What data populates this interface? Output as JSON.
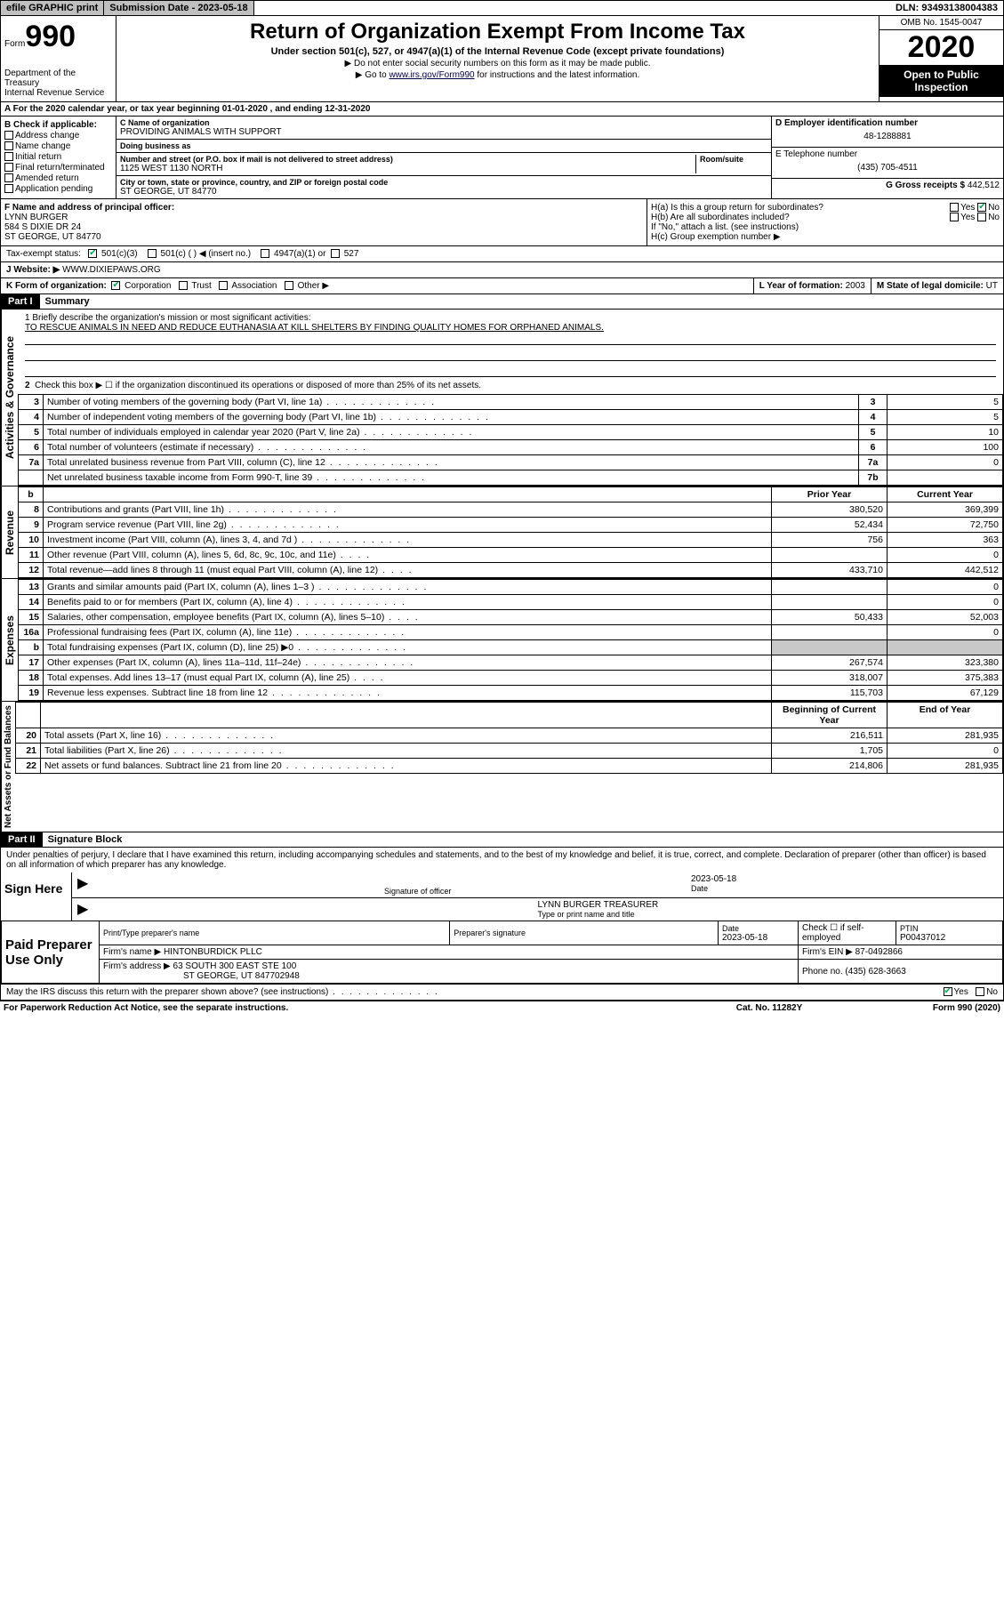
{
  "topbar": {
    "efile": "efile GRAPHIC print",
    "submission_label": "Submission Date - ",
    "submission_date": "2023-05-18",
    "dln_label": "DLN: ",
    "dln": "93493138004383"
  },
  "header": {
    "form_word": "Form",
    "form_num": "990",
    "dept": "Department of the Treasury",
    "irs": "Internal Revenue Service",
    "title": "Return of Organization Exempt From Income Tax",
    "subtitle": "Under section 501(c), 527, or 4947(a)(1) of the Internal Revenue Code (except private foundations)",
    "arrow1": "▶ Do not enter social security numbers on this form as it may be made public.",
    "arrow2_pre": "▶ Go to ",
    "arrow2_link": "www.irs.gov/Form990",
    "arrow2_post": " for instructions and the latest information.",
    "omb": "OMB No. 1545-0047",
    "year": "2020",
    "public": "Open to Public Inspection"
  },
  "line_a": "A For the 2020 calendar year, or tax year beginning 01-01-2020    , and ending 12-31-2020",
  "col_b": {
    "label": "B Check if applicable:",
    "items": [
      "Address change",
      "Name change",
      "Initial return",
      "Final return/terminated",
      "Amended return",
      "Application pending"
    ]
  },
  "col_c": {
    "name_label": "C Name of organization",
    "name": "PROVIDING ANIMALS WITH SUPPORT",
    "dba_label": "Doing business as",
    "dba": "",
    "street_label": "Number and street (or P.O. box if mail is not delivered to street address)",
    "room_label": "Room/suite",
    "street": "1125 WEST 1130 NORTH",
    "city_label": "City or town, state or province, country, and ZIP or foreign postal code",
    "city": "ST GEORGE, UT  84770"
  },
  "col_de": {
    "d_label": "D Employer identification number",
    "d_val": "48-1288881",
    "e_label": "E Telephone number",
    "e_val": "(435) 705-4511",
    "g_label": "G Gross receipts $ ",
    "g_val": "442,512"
  },
  "fgh": {
    "f_label": "F  Name and address of principal officer:",
    "f_name": "LYNN BURGER",
    "f_addr1": "584 S DIXIE DR 24",
    "f_addr2": "ST GEORGE, UT  84770",
    "ha": "H(a)  Is this a group return for subordinates?",
    "ha_yes": "Yes",
    "ha_no": "No",
    "hb": "H(b)  Are all subordinates included?",
    "hb_note": "If \"No,\" attach a list. (see instructions)",
    "hc": "H(c)  Group exemption number ▶"
  },
  "tax_exempt": {
    "label": "Tax-exempt status:",
    "opt1": "501(c)(3)",
    "opt2": "501(c) (   ) ◀ (insert no.)",
    "opt3": "4947(a)(1) or",
    "opt4": "527"
  },
  "line_j": {
    "label": "J  Website: ▶ ",
    "val": "WWW.DIXIEPAWS.ORG"
  },
  "klm": {
    "k_label": "K Form of organization:",
    "k_opts": [
      "Corporation",
      "Trust",
      "Association",
      "Other ▶"
    ],
    "l_label": "L Year of formation: ",
    "l_val": "2003",
    "m_label": "M State of legal domicile: ",
    "m_val": "UT"
  },
  "part1": {
    "hdr": "Part I",
    "title": "Summary",
    "l1_label": "1   Briefly describe the organization's mission or most significant activities:",
    "l1_val": "TO RESCUE ANIMALS IN NEED AND REDUCE EUTHANASIA AT KILL SHELTERS BY FINDING QUALITY HOMES FOR ORPHANED ANIMALS.",
    "l2": "Check this box ▶ ☐  if the organization discontinued its operations or disposed of more than 25% of its net assets.",
    "vert_gov": "Activities & Governance",
    "vert_rev": "Revenue",
    "vert_exp": "Expenses",
    "vert_net": "Net Assets or Fund Balances",
    "rows_single": [
      {
        "n": "3",
        "d": "Number of voting members of the governing body (Part VI, line 1a)",
        "box": "3",
        "v": "5"
      },
      {
        "n": "4",
        "d": "Number of independent voting members of the governing body (Part VI, line 1b)",
        "box": "4",
        "v": "5"
      },
      {
        "n": "5",
        "d": "Total number of individuals employed in calendar year 2020 (Part V, line 2a)",
        "box": "5",
        "v": "10"
      },
      {
        "n": "6",
        "d": "Total number of volunteers (estimate if necessary)",
        "box": "6",
        "v": "100"
      },
      {
        "n": "7a",
        "d": "Total unrelated business revenue from Part VIII, column (C), line 12",
        "box": "7a",
        "v": "0"
      },
      {
        "n": "",
        "d": "Net unrelated business taxable income from Form 990-T, line 39",
        "box": "7b",
        "v": ""
      }
    ],
    "col_hdr_prior": "Prior Year",
    "col_hdr_curr": "Current Year",
    "rows_rev": [
      {
        "n": "8",
        "d": "Contributions and grants (Part VIII, line 1h)",
        "p": "380,520",
        "c": "369,399"
      },
      {
        "n": "9",
        "d": "Program service revenue (Part VIII, line 2g)",
        "p": "52,434",
        "c": "72,750"
      },
      {
        "n": "10",
        "d": "Investment income (Part VIII, column (A), lines 3, 4, and 7d )",
        "p": "756",
        "c": "363"
      },
      {
        "n": "11",
        "d": "Other revenue (Part VIII, column (A), lines 5, 6d, 8c, 9c, 10c, and 11e)",
        "p": "",
        "c": "0"
      },
      {
        "n": "12",
        "d": "Total revenue—add lines 8 through 11 (must equal Part VIII, column (A), line 12)",
        "p": "433,710",
        "c": "442,512"
      }
    ],
    "rows_exp": [
      {
        "n": "13",
        "d": "Grants and similar amounts paid (Part IX, column (A), lines 1–3 )",
        "p": "",
        "c": "0"
      },
      {
        "n": "14",
        "d": "Benefits paid to or for members (Part IX, column (A), line 4)",
        "p": "",
        "c": "0"
      },
      {
        "n": "15",
        "d": "Salaries, other compensation, employee benefits (Part IX, column (A), lines 5–10)",
        "p": "50,433",
        "c": "52,003"
      },
      {
        "n": "16a",
        "d": "Professional fundraising fees (Part IX, column (A), line 11e)",
        "p": "",
        "c": "0"
      },
      {
        "n": "b",
        "d": "Total fundraising expenses (Part IX, column (D), line 25) ▶0",
        "p": "SHADE",
        "c": "SHADE"
      },
      {
        "n": "17",
        "d": "Other expenses (Part IX, column (A), lines 11a–11d, 11f–24e)",
        "p": "267,574",
        "c": "323,380"
      },
      {
        "n": "18",
        "d": "Total expenses. Add lines 13–17 (must equal Part IX, column (A), line 25)",
        "p": "318,007",
        "c": "375,383"
      },
      {
        "n": "19",
        "d": "Revenue less expenses. Subtract line 18 from line 12",
        "p": "115,703",
        "c": "67,129"
      }
    ],
    "col_hdr_beg": "Beginning of Current Year",
    "col_hdr_end": "End of Year",
    "rows_net": [
      {
        "n": "20",
        "d": "Total assets (Part X, line 16)",
        "p": "216,511",
        "c": "281,935"
      },
      {
        "n": "21",
        "d": "Total liabilities (Part X, line 26)",
        "p": "1,705",
        "c": "0"
      },
      {
        "n": "22",
        "d": "Net assets or fund balances. Subtract line 21 from line 20",
        "p": "214,806",
        "c": "281,935"
      }
    ]
  },
  "part2": {
    "hdr": "Part II",
    "title": "Signature Block",
    "decl": "Under penalties of perjury, I declare that I have examined this return, including accompanying schedules and statements, and to the best of my knowledge and belief, it is true, correct, and complete. Declaration of preparer (other than officer) is based on all information of which preparer has any knowledge.",
    "sign_here": "Sign Here",
    "sig_officer": "Signature of officer",
    "sig_date_label": "Date",
    "sig_date": "2023-05-18",
    "sig_name": "LYNN BURGER  TREASURER",
    "sig_type": "Type or print name and title",
    "prep_use": "Paid Preparer Use Only",
    "prep_name_label": "Print/Type preparer's name",
    "prep_name": "",
    "prep_sig_label": "Preparer's signature",
    "prep_date_label": "Date",
    "prep_date": "2023-05-18",
    "prep_check": "Check ☐ if self-employed",
    "ptin_label": "PTIN",
    "ptin": "P00437012",
    "firm_name_label": "Firm's name     ▶ ",
    "firm_name": "HINTONBURDICK PLLC",
    "firm_ein_label": "Firm's EIN ▶ ",
    "firm_ein": "87-0492866",
    "firm_addr_label": "Firm's address ▶ ",
    "firm_addr1": "63 SOUTH 300 EAST STE 100",
    "firm_addr2": "ST GEORGE, UT  847702948",
    "firm_phone_label": "Phone no. ",
    "firm_phone": "(435) 628-3663",
    "discuss": "May the IRS discuss this return with the preparer shown above? (see instructions)",
    "discuss_yes": "Yes",
    "discuss_no": "No"
  },
  "footer": {
    "left": "For Paperwork Reduction Act Notice, see the separate instructions.",
    "mid": "Cat. No. 11282Y",
    "right": "Form 990 (2020)"
  },
  "colors": {
    "black": "#000000",
    "white": "#ffffff",
    "gray_btn": "#c0c0c0",
    "shade": "#c8c8c8",
    "check_green": "#00aa55"
  }
}
